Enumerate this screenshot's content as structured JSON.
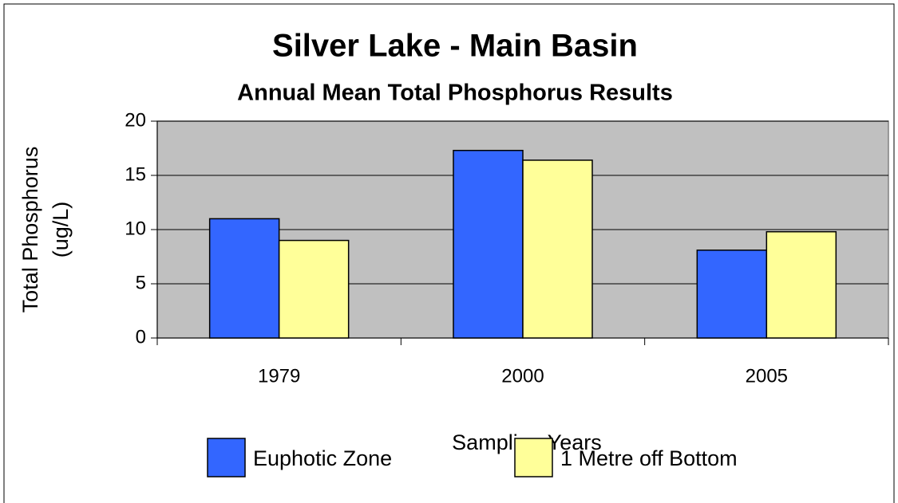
{
  "chart_data": {
    "type": "bar",
    "title": "Silver Lake - Main Basin",
    "subtitle": "Annual Mean Total Phosphorus Results",
    "xlabel": "Sampling Years",
    "ylabel": [
      "Total Phosphorus",
      "(ug/L)"
    ],
    "categories": [
      "1979",
      "2000",
      "2005"
    ],
    "series": [
      {
        "name": "Euphotic Zone",
        "color": "#3366ff",
        "values": [
          11,
          17.3,
          8.1
        ]
      },
      {
        "name": "1 Metre off Bottom",
        "color": "#ffff99",
        "values": [
          9,
          16.4,
          9.8
        ]
      }
    ],
    "ylim": [
      0,
      20
    ],
    "yticks": [
      0,
      5,
      10,
      15,
      20
    ],
    "grid": true,
    "legend": "bottom"
  }
}
